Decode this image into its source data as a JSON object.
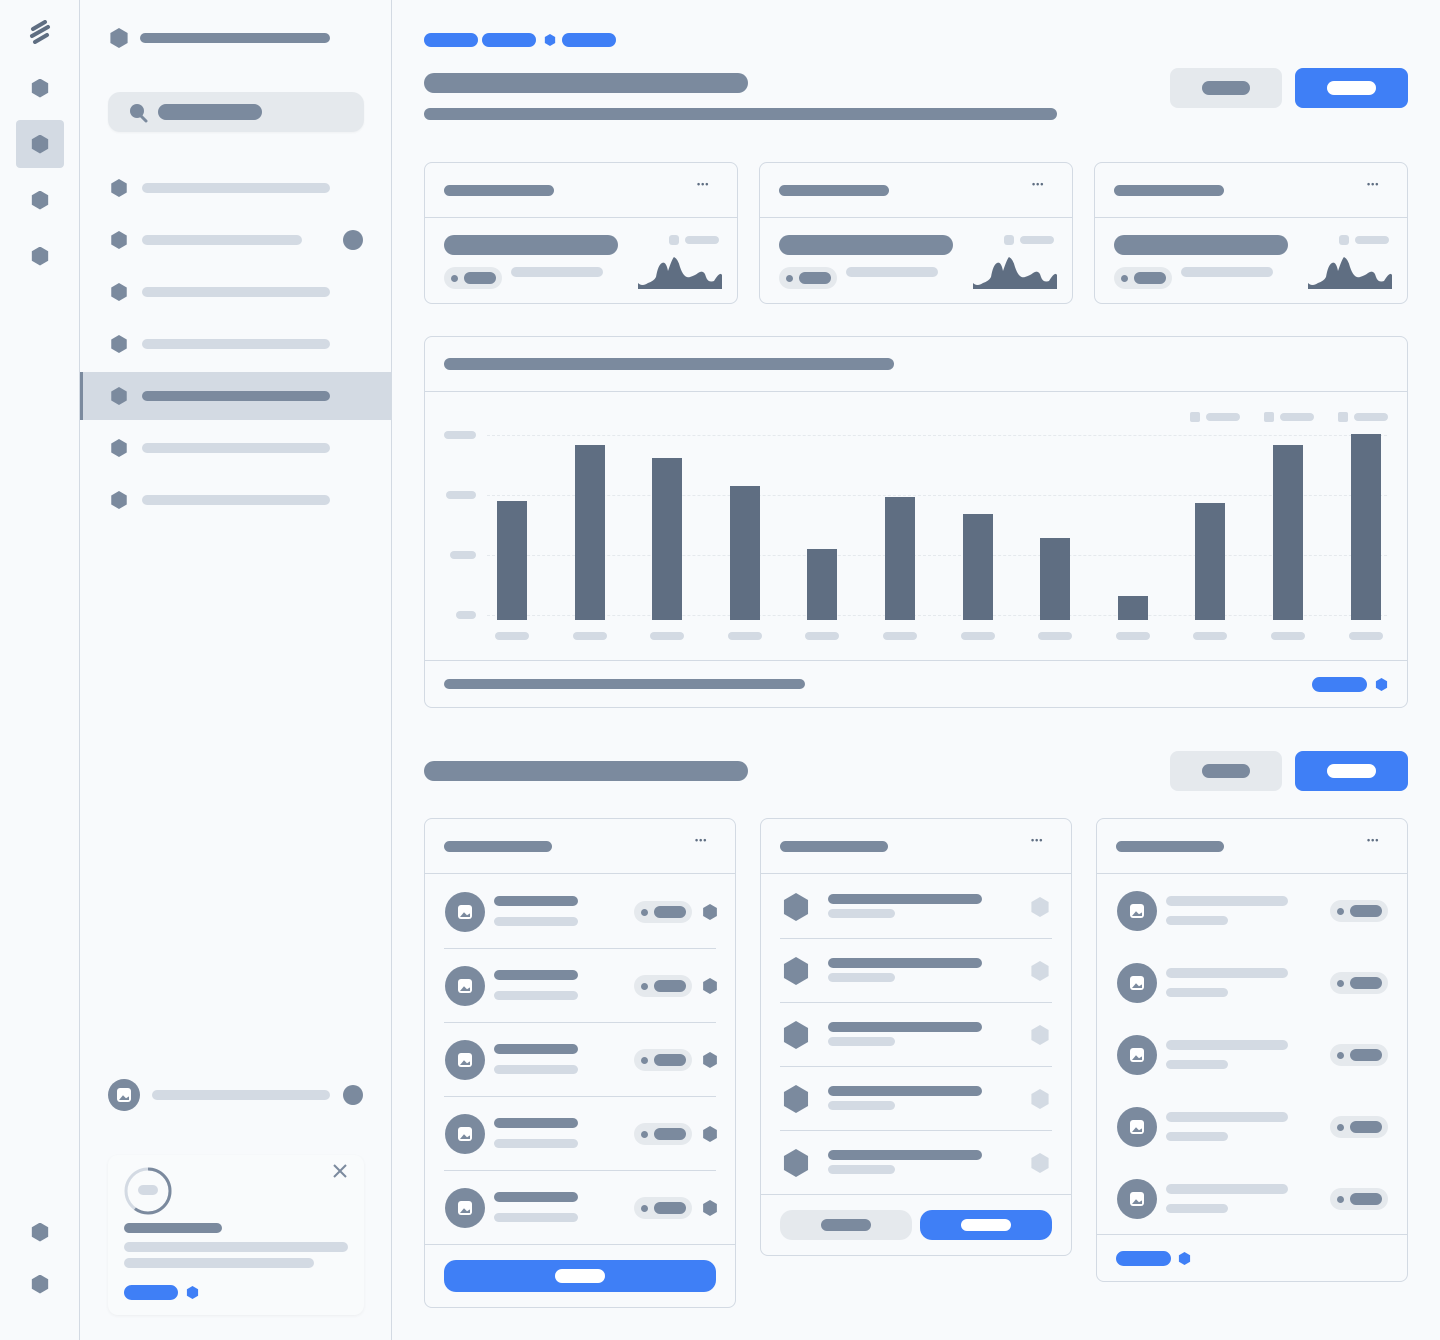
{
  "colors": {
    "accent": "#3f7ff6",
    "skeleton_dark": "#7b8a9e",
    "skeleton_light": "#d3dae3",
    "chart_bar": "#5f6e82",
    "background": "#f8fafc"
  },
  "icons": {
    "logo": "stripes-logo-icon",
    "search": "search-icon",
    "more": "more-horizontal-icon",
    "image": "image-icon",
    "close": "close-icon",
    "nav": "hexagon-icon"
  },
  "sidebar": {
    "active_item_index": 4,
    "rail_active_index": 1
  },
  "onboarding_card": {
    "progress": 0.6
  },
  "chart_data": {
    "type": "bar",
    "categories": [
      "",
      "",
      "",
      "",
      "",
      "",
      "",
      "",
      "",
      "",
      "",
      ""
    ],
    "values": [
      64,
      94,
      87,
      72,
      38,
      66,
      57,
      44,
      13,
      63,
      94,
      100
    ],
    "ylim": [
      0,
      100
    ],
    "grid": true,
    "legend": "top-right"
  }
}
